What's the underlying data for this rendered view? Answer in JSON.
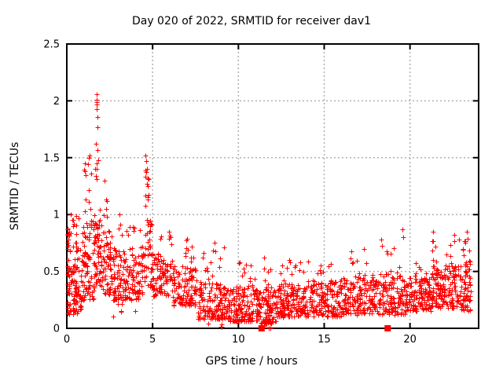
{
  "chart_data": {
    "type": "scatter",
    "title": "Day 020 of 2022, SRMTID for receiver dav1",
    "xlabel": "GPS time / hours",
    "ylabel": "SRMTID / TECUs",
    "xlim": [
      0,
      24
    ],
    "ylim": [
      0,
      2.5
    ],
    "xticks": {
      "values": [
        0,
        5,
        10,
        15,
        20
      ],
      "labels": [
        "0",
        "5",
        "10",
        "15",
        "20"
      ]
    },
    "yticks": {
      "values": [
        0,
        0.5,
        1,
        1.5,
        2,
        2.5
      ],
      "labels": [
        "0",
        "0.5",
        "1",
        "1.5",
        "2",
        "2.5"
      ]
    },
    "grid": "dashed",
    "legend": "none",
    "colors": {
      "marker": "#ff0000",
      "axis": "#000000",
      "grid": "#b0b0b0",
      "text": "#000000",
      "background": "#ffffff"
    },
    "series": [
      {
        "name": "SRMTID",
        "marker": "plus",
        "marker_size": 7,
        "seed": 20220,
        "points": [
          [
            0.05,
            0.87
          ],
          [
            0.1,
            0.83
          ],
          [
            0.3,
            0.95
          ],
          [
            0.55,
            0.99
          ],
          [
            0.7,
            0.97
          ],
          [
            1.05,
            1.45
          ],
          [
            1.25,
            1.44
          ],
          [
            1.3,
            1.5
          ],
          [
            1.35,
            1.52
          ],
          [
            1.7,
            1.62
          ],
          [
            1.72,
            2.06
          ],
          [
            1.73,
            1.93
          ],
          [
            1.74,
            2.01
          ],
          [
            1.75,
            1.99
          ],
          [
            1.76,
            1.97
          ],
          [
            1.77,
            1.86
          ],
          [
            1.78,
            1.77
          ],
          [
            2.2,
            1.3
          ],
          [
            2.32,
            1.12
          ],
          [
            3.05,
            1.0
          ],
          [
            4.57,
            1.08
          ],
          [
            4.6,
            1.52
          ],
          [
            4.6,
            1.33
          ],
          [
            4.63,
            1.47
          ],
          [
            4.66,
            1.4
          ],
          [
            4.7,
            1.25
          ],
          [
            4.74,
            1.15
          ],
          [
            5.95,
            0.85
          ],
          [
            6.05,
            0.8
          ],
          [
            7.0,
            0.79
          ],
          [
            7.3,
            0.72
          ],
          [
            8.6,
            0.75
          ],
          [
            8.65,
            0.68
          ],
          [
            9.15,
            0.71
          ],
          [
            10.45,
            0.56
          ],
          [
            11.5,
            0.62
          ],
          [
            11.78,
            0.0
          ],
          [
            11.88,
            0.0
          ],
          [
            12.95,
            0.6
          ],
          [
            13.6,
            0.58
          ],
          [
            16.6,
            0.68
          ],
          [
            17.3,
            0.7
          ],
          [
            18.3,
            0.78
          ],
          [
            19.55,
            0.87
          ],
          [
            19.6,
            0.8
          ],
          [
            21.35,
            0.85
          ],
          [
            21.5,
            0.72
          ],
          [
            22.6,
            0.82
          ],
          [
            22.85,
            0.78
          ],
          [
            23.3,
            0.85
          ],
          [
            23.35,
            0.79
          ]
        ],
        "cluster_bands": [
          [
            0.02,
            0.18,
            24,
            0.3,
            0.88,
            1.0
          ],
          [
            0.05,
            0.6,
            48,
            0.12,
            0.55,
            1.2
          ],
          [
            0.2,
            0.75,
            10,
            0.72,
            1.0,
            1.0
          ],
          [
            0.35,
            1.05,
            60,
            0.15,
            0.75,
            1.3
          ],
          [
            0.9,
            1.65,
            75,
            0.25,
            0.95,
            1.2
          ],
          [
            1.0,
            1.5,
            9,
            0.95,
            1.45,
            1.0
          ],
          [
            1.6,
            2.05,
            55,
            0.35,
            1.05,
            1.1
          ],
          [
            1.62,
            1.95,
            7,
            1.05,
            1.6,
            1.0
          ],
          [
            2.0,
            2.65,
            60,
            0.3,
            0.85,
            1.2
          ],
          [
            2.05,
            2.45,
            5,
            0.85,
            1.22,
            1.0
          ],
          [
            2.6,
            4.45,
            165,
            0.25,
            0.72,
            1.35
          ],
          [
            3.0,
            4.4,
            10,
            0.72,
            0.98,
            1.0
          ],
          [
            2.5,
            4.2,
            6,
            0.1,
            0.22,
            1.0
          ],
          [
            4.45,
            5.0,
            48,
            0.35,
            0.95,
            1.1
          ],
          [
            4.55,
            4.8,
            8,
            0.95,
            1.4,
            1.0
          ],
          [
            5.0,
            6.2,
            85,
            0.28,
            0.62,
            1.25
          ],
          [
            5.3,
            6.15,
            8,
            0.62,
            0.82,
            1.0
          ],
          [
            6.2,
            7.6,
            110,
            0.2,
            0.55,
            1.35
          ],
          [
            6.85,
            7.4,
            8,
            0.55,
            0.78,
            1.0
          ],
          [
            7.6,
            9.5,
            155,
            0.08,
            0.4,
            1.45
          ],
          [
            7.7,
            9.4,
            12,
            0.4,
            0.7,
            1.0
          ],
          [
            8.0,
            9.4,
            4,
            0.0,
            0.06,
            1.0
          ],
          [
            9.5,
            11.2,
            150,
            0.06,
            0.38,
            1.45
          ],
          [
            9.7,
            11.1,
            9,
            0.38,
            0.58,
            1.0
          ],
          [
            11.2,
            12.2,
            100,
            0.04,
            0.35,
            1.4
          ],
          [
            11.4,
            12.0,
            7,
            0.35,
            0.6,
            1.0
          ],
          [
            11.3,
            11.95,
            4,
            0.0,
            0.05,
            1.0
          ],
          [
            12.2,
            14.2,
            170,
            0.1,
            0.4,
            1.35
          ],
          [
            12.4,
            14.1,
            12,
            0.4,
            0.6,
            1.0
          ],
          [
            14.2,
            16.0,
            150,
            0.1,
            0.42,
            1.35
          ],
          [
            14.4,
            15.9,
            8,
            0.42,
            0.58,
            1.0
          ],
          [
            16.0,
            18.0,
            160,
            0.12,
            0.45,
            1.35
          ],
          [
            16.3,
            17.9,
            9,
            0.45,
            0.66,
            1.0
          ],
          [
            18.0,
            19.8,
            140,
            0.12,
            0.48,
            1.3
          ],
          [
            18.2,
            19.7,
            9,
            0.48,
            0.76,
            1.0
          ],
          [
            19.8,
            21.2,
            120,
            0.15,
            0.45,
            1.35
          ],
          [
            20.0,
            21.1,
            6,
            0.45,
            0.6,
            1.0
          ],
          [
            21.2,
            23.0,
            165,
            0.18,
            0.55,
            1.25
          ],
          [
            21.3,
            22.9,
            10,
            0.55,
            0.8,
            1.0
          ],
          [
            23.0,
            23.6,
            60,
            0.15,
            0.6,
            1.15
          ],
          [
            23.05,
            23.5,
            7,
            0.6,
            0.85,
            1.0
          ]
        ]
      },
      {
        "name": "flagged-epochs",
        "marker": "filled-square",
        "marker_size": 8,
        "points": [
          [
            11.35,
            0.0
          ],
          [
            18.7,
            0.0
          ]
        ]
      }
    ]
  }
}
